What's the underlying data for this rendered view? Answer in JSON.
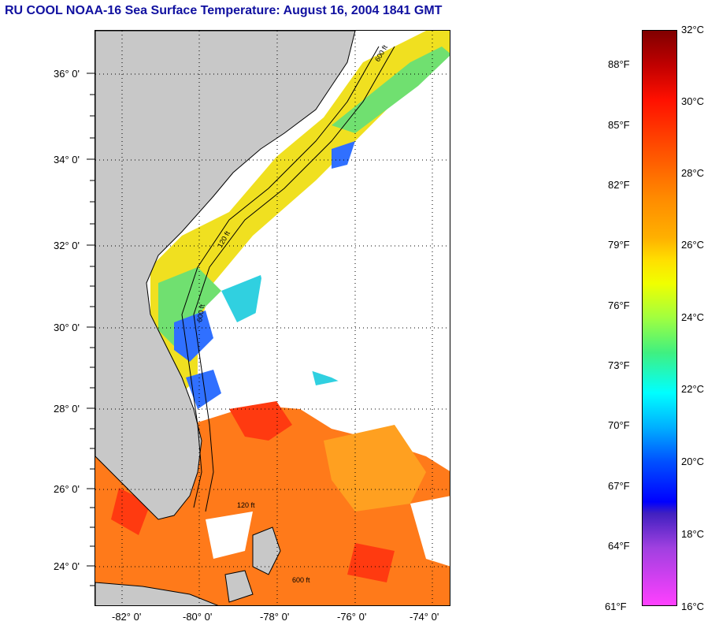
{
  "title": "RU COOL  NOAA-16  Sea Surface Temperature:  August 16, 2004 1841 GMT",
  "map": {
    "latitude_labels": [
      "36° 0'",
      "34° 0'",
      "32° 0'",
      "30° 0'",
      "28° 0'",
      "26° 0'",
      "24° 0'"
    ],
    "longitude_labels": [
      "-82° 0'",
      "-80° 0'",
      "-78° 0'",
      "-76° 0'",
      "-74° 0'"
    ],
    "bathymetry_labels": [
      "120 ft",
      "600 ft"
    ],
    "colors": {
      "land": "#c8c8c8",
      "cloud": "#ffffff",
      "coast": "#000000"
    }
  },
  "colorbar": {
    "celsius_labels": [
      "32°C",
      "30°C",
      "28°C",
      "26°C",
      "24°C",
      "22°C",
      "20°C",
      "18°C",
      "16°C"
    ],
    "fahrenheit_labels": [
      "88°F",
      "85°F",
      "82°F",
      "79°F",
      "76°F",
      "73°F",
      "70°F",
      "67°F",
      "64°F",
      "61°F"
    ]
  }
}
